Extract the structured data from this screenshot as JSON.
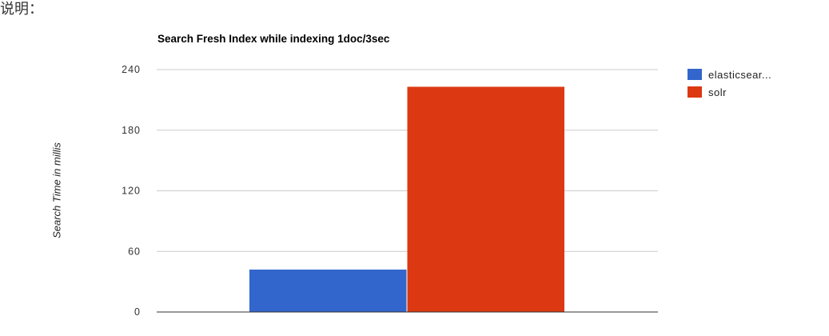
{
  "page": {
    "top_fragment": "说明："
  },
  "chart_data": {
    "type": "bar",
    "title": "Search Fresh Index while indexing 1doc/3sec",
    "xlabel": "",
    "ylabel": "Search Time in millis",
    "categories": [
      ""
    ],
    "series": [
      {
        "name": "elasticsear...",
        "values": [
          42
        ],
        "color": "#3366cc"
      },
      {
        "name": "solr",
        "values": [
          223
        ],
        "color": "#dc3912"
      }
    ],
    "ylim": [
      0,
      240
    ],
    "yticks": [
      0,
      60,
      120,
      180,
      240
    ],
    "grid": true,
    "legend": "right"
  }
}
